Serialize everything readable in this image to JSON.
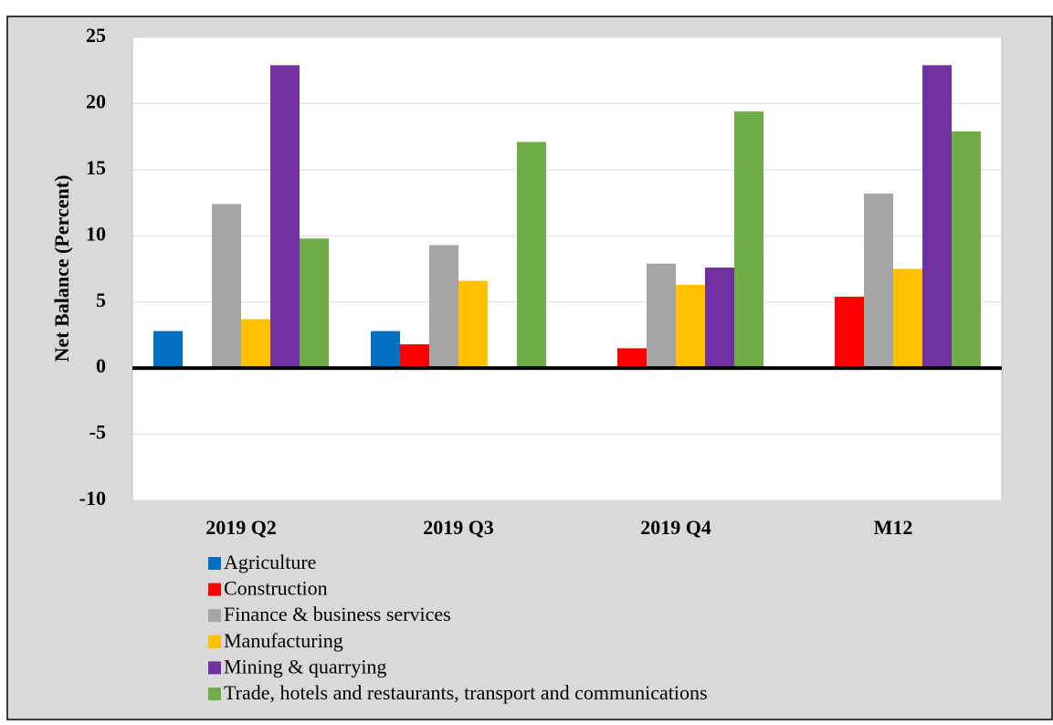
{
  "chart_data": {
    "type": "bar",
    "y_label": "Net Balance (Percent)",
    "categories": [
      "2019 Q2",
      "2019 Q3",
      "2019 Q4",
      "M12"
    ],
    "series": [
      {
        "name": "Agriculture",
        "color": "#0070c0",
        "values": [
          2.8,
          2.8,
          0,
          0
        ]
      },
      {
        "name": "Construction",
        "color": "#ff0000",
        "values": [
          0,
          1.8,
          1.5,
          5.4
        ]
      },
      {
        "name": "Finance & business services",
        "color": "#a5a5a5",
        "values": [
          12.4,
          9.3,
          7.9,
          13.2
        ]
      },
      {
        "name": "Manufacturing",
        "color": "#ffc000",
        "values": [
          3.7,
          6.6,
          6.3,
          7.5
        ]
      },
      {
        "name": "Mining & quarrying",
        "color": "#7030a0",
        "values": [
          22.9,
          0,
          7.6,
          22.9
        ]
      },
      {
        "name": "Trade, hotels and restaurants, transport and communications",
        "color": "#70ad47",
        "values": [
          9.8,
          17.1,
          19.4,
          17.9
        ]
      }
    ],
    "ylim": [
      -10,
      25
    ],
    "yticks": [
      -10,
      -5,
      0,
      5,
      10,
      15,
      20,
      25
    ],
    "grid": true
  }
}
